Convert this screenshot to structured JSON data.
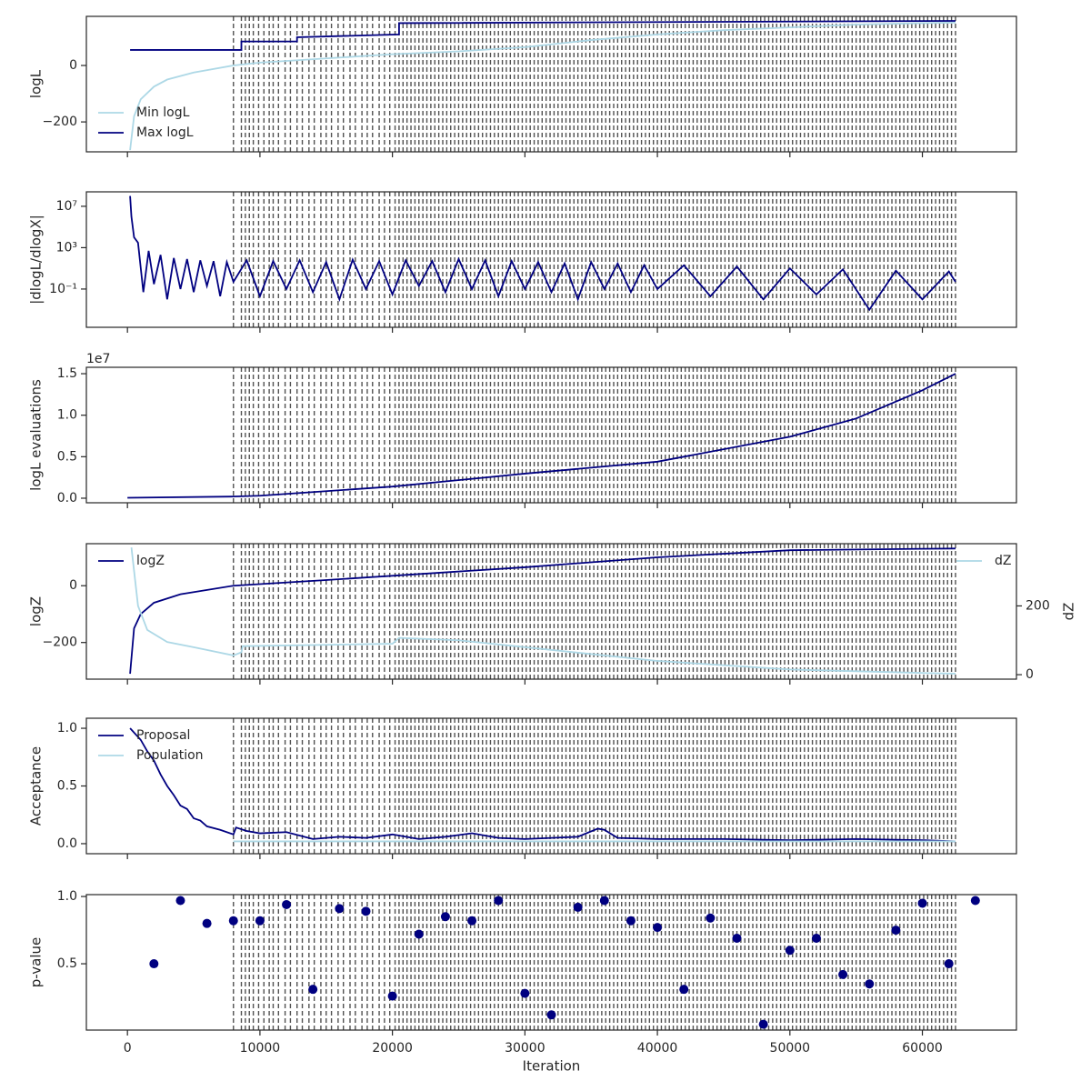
{
  "vlines": [
    8000,
    8600,
    8900,
    9200,
    9500,
    9900,
    10300,
    10700,
    11000,
    11400,
    11900,
    12300,
    12800,
    13200,
    13700,
    14100,
    14600,
    15000,
    15400,
    15900,
    16300,
    16800,
    17200,
    17700,
    18100,
    18500,
    19000,
    19400,
    19800,
    20200,
    20500,
    20800,
    21100,
    21400,
    21700,
    22000,
    22300,
    22600,
    22900,
    23200,
    23500,
    23800,
    24100,
    24400,
    24700,
    25000,
    25300,
    25600,
    25900,
    26200,
    26500,
    26800,
    27100,
    27400,
    27700,
    28000,
    28300,
    28600,
    28900,
    29200,
    29500,
    29800,
    30100,
    30400,
    30700,
    31000,
    31300,
    31600,
    31900,
    32200,
    32500,
    32800,
    33100,
    33400,
    33700,
    34000,
    34300,
    34600,
    34900,
    35200,
    35500,
    35800,
    36100,
    36400,
    36700,
    37000,
    37300,
    37600,
    37900,
    38200,
    38500,
    38800,
    39100,
    39400,
    39700,
    40000,
    40300,
    40600,
    40900,
    41200,
    41500,
    41800,
    42100,
    42400,
    42700,
    43000,
    43300,
    43600,
    43900,
    44200,
    44500,
    44800,
    45100,
    45400,
    45700,
    46000,
    46300,
    46600,
    46900,
    47200,
    47500,
    47800,
    48100,
    48400,
    48700,
    49000,
    49300,
    49600,
    49900,
    50200,
    50500,
    50800,
    51100,
    51400,
    51700,
    52000,
    52300,
    52600,
    52900,
    53200,
    53500,
    53800,
    54100,
    54400,
    54700,
    55000,
    55300,
    55600,
    55900,
    56200,
    56500,
    56800,
    57100,
    57400,
    57700,
    58000,
    58300,
    58600,
    58900,
    59200,
    59500,
    59800,
    60100,
    60400,
    60700,
    61000,
    61300,
    61600,
    61900,
    62200,
    62500
  ],
  "chart_data": [
    {
      "type": "line",
      "ylabel": "logL",
      "xlim": [
        -3100,
        67100
      ],
      "xticks": [
        0,
        10000,
        20000,
        30000,
        40000,
        50000,
        60000
      ],
      "ylim": [
        -306,
        174
      ],
      "yticks": [
        {
          "value": -200,
          "label": "−200"
        },
        0
      ],
      "legend": "lower left",
      "series": [
        {
          "name": "Min logL",
          "color": "#add8e6",
          "x": [
            200,
            500,
            1000,
            2000,
            3000,
            5000,
            8000,
            10000,
            15000,
            20000,
            25000,
            30000,
            35000,
            40000,
            45000,
            50000,
            55000,
            60000,
            62500
          ],
          "values": [
            -300,
            -180,
            -120,
            -75,
            -50,
            -25,
            0,
            10,
            25,
            40,
            50,
            65,
            90,
            110,
            125,
            135,
            145,
            150,
            152
          ]
        },
        {
          "name": "Max logL",
          "color": "#000080",
          "x": [
            200,
            8600,
            8600,
            12800,
            12800,
            20500,
            20500,
            62500
          ],
          "values": [
            55,
            55,
            85,
            85,
            100,
            110,
            150,
            158
          ]
        }
      ]
    },
    {
      "type": "line",
      "ylabel": "|dlogL/dlogX|",
      "xlim": [
        -3100,
        67100
      ],
      "xticks": [
        0,
        10000,
        20000,
        30000,
        40000,
        50000,
        60000
      ],
      "ylim": [
        2e-05,
        250000000
      ],
      "log_scale": true,
      "yticks": [
        {
          "value": 0.1,
          "label": "10⁻¹"
        },
        {
          "value": 1000,
          "label": "10³"
        },
        {
          "value": 10000000,
          "label": "10⁷"
        }
      ],
      "series": [
        {
          "color": "#000080",
          "x": [
            200,
            300,
            500,
            800,
            1200,
            1600,
            2000,
            2500,
            3000,
            3500,
            4000,
            4500,
            5000,
            5500,
            6000,
            6500,
            7000,
            7500,
            8000,
            9000,
            10000,
            11000,
            12000,
            13000,
            14000,
            15000,
            16000,
            17000,
            18000,
            19000,
            20000,
            21000,
            22000,
            23000,
            24000,
            25000,
            26000,
            27000,
            28000,
            29000,
            30000,
            31000,
            32000,
            33000,
            34000,
            35000,
            36000,
            37000,
            38000,
            39000,
            40000,
            42000,
            44000,
            46000,
            48000,
            50000,
            52000,
            54000,
            56000,
            58000,
            60000,
            62000,
            62500
          ],
          "values": [
            100000000,
            1000000,
            10000,
            3000,
            0.05,
            500,
            0.3,
            200,
            0.01,
            100,
            0.1,
            80,
            0.05,
            60,
            0.2,
            50,
            0.02,
            40,
            0.5,
            60,
            0.02,
            50,
            0.1,
            60,
            0.05,
            40,
            0.01,
            70,
            0.1,
            50,
            0.03,
            60,
            0.2,
            50,
            0.05,
            80,
            0.1,
            60,
            0.02,
            50,
            0.1,
            40,
            0.05,
            30,
            0.01,
            40,
            0.1,
            30,
            0.05,
            20,
            0.1,
            20,
            0.02,
            15,
            0.01,
            10,
            0.03,
            8,
            0.001,
            6,
            0.01,
            5,
            0.5
          ]
        }
      ]
    },
    {
      "type": "line",
      "ylabel": "logL evaluations",
      "offset_text": "1e7",
      "xlim": [
        -3100,
        67100
      ],
      "xticks": [
        0,
        10000,
        20000,
        30000,
        40000,
        50000,
        60000
      ],
      "ylim": [
        -550000,
        15770000
      ],
      "yticks": [
        {
          "value": 0,
          "label": "0.0"
        },
        {
          "value": 5000000,
          "label": "0.5"
        },
        {
          "value": 10000000,
          "label": "1.0"
        },
        {
          "value": 15000000,
          "label": "1.5"
        }
      ],
      "series": [
        {
          "color": "#000080",
          "x": [
            0,
            8000,
            10000,
            20000,
            30000,
            40000,
            50000,
            55000,
            60000,
            62500
          ],
          "values": [
            50000,
            200000,
            300000,
            1400000,
            2960000,
            4400000,
            7400000,
            9600000,
            13000000,
            15000000
          ]
        }
      ]
    },
    {
      "type": "line",
      "ylabel": "logZ",
      "y2label": "dZ",
      "xlim": [
        -3100,
        67100
      ],
      "xticks": [
        0,
        10000,
        20000,
        30000,
        40000,
        50000,
        60000
      ],
      "ylim": [
        -329,
        148
      ],
      "yticks": [
        {
          "value": -200,
          "label": "−200"
        },
        0
      ],
      "y2lim": [
        -13,
        381
      ],
      "y2ticks": [
        0,
        200
      ],
      "legend": "upper left",
      "y2legend": "upper right",
      "series": [
        {
          "name": "logZ",
          "color": "#000080",
          "x": [
            200,
            500,
            1000,
            2000,
            4000,
            8000,
            15000,
            20000,
            30000,
            40000,
            50000,
            60000,
            62500
          ],
          "values": [
            -310,
            -150,
            -100,
            -60,
            -30,
            0,
            20,
            35,
            65,
            100,
            125,
            130,
            131
          ]
        },
        {
          "name": "dZ",
          "color": "#add8e6",
          "axis": "y2",
          "x": [
            300,
            800,
            1500,
            3000,
            5000,
            8000,
            8600,
            8700,
            20000,
            20500,
            25000,
            30000,
            40000,
            50000,
            60000,
            62500
          ],
          "values": [
            370,
            200,
            130,
            95,
            80,
            56,
            65,
            83,
            90,
            107,
            100,
            80,
            40,
            15,
            5,
            3
          ]
        }
      ]
    },
    {
      "type": "line",
      "ylabel": "Acceptance",
      "xlim": [
        -3100,
        67100
      ],
      "xticks": [
        0,
        10000,
        20000,
        30000,
        40000,
        50000,
        60000
      ],
      "ylim": [
        -0.087,
        1.087
      ],
      "yticks": [
        {
          "value": 0,
          "label": "0.0"
        },
        0.5,
        {
          "value": 1,
          "label": "1.0"
        }
      ],
      "legend": "upper left",
      "series": [
        {
          "name": "Proposal",
          "color": "#000080",
          "x": [
            200,
            1000,
            1500,
            2000,
            2500,
            3000,
            3500,
            4000,
            4500,
            5000,
            5500,
            6000,
            7000,
            8000,
            8200,
            9000,
            10000,
            12000,
            14000,
            16000,
            18000,
            20000,
            22000,
            24000,
            26000,
            28000,
            30000,
            32000,
            34000,
            35500,
            36000,
            37000,
            40000,
            45000,
            50000,
            55000,
            60000,
            62500
          ],
          "values": [
            1.0,
            0.9,
            0.8,
            0.72,
            0.6,
            0.5,
            0.42,
            0.33,
            0.3,
            0.22,
            0.2,
            0.15,
            0.12,
            0.08,
            0.14,
            0.11,
            0.09,
            0.1,
            0.04,
            0.06,
            0.05,
            0.08,
            0.04,
            0.06,
            0.09,
            0.05,
            0.04,
            0.05,
            0.06,
            0.13,
            0.12,
            0.05,
            0.04,
            0.04,
            0.03,
            0.04,
            0.03,
            0.02
          ]
        },
        {
          "name": "Population",
          "color": "#add8e6",
          "x": [
            8000,
            62500
          ],
          "values": [
            0.02,
            0.02
          ]
        }
      ]
    },
    {
      "type": "scatter",
      "ylabel": "p-value",
      "xlabel": "Iteration",
      "xlim": [
        -3100,
        67100
      ],
      "xticks": [
        0,
        10000,
        20000,
        30000,
        40000,
        50000,
        60000
      ],
      "ylim": [
        0.007,
        1.014
      ],
      "yticks": [
        0.5,
        {
          "value": 1,
          "label": "1.0"
        }
      ],
      "series": [
        {
          "color": "#000080",
          "x": [
            2000,
            4000,
            6000,
            8000,
            10000,
            12000,
            14000,
            16000,
            18000,
            20000,
            22000,
            24000,
            26000,
            28000,
            30000,
            32000,
            34000,
            36000,
            38000,
            40000,
            42000,
            44000,
            46000,
            48000,
            50000,
            52000,
            54000,
            56000,
            58000,
            60000,
            62000,
            64000
          ],
          "values": [
            0.5,
            0.97,
            0.8,
            0.82,
            0.82,
            0.94,
            0.31,
            0.91,
            0.89,
            0.26,
            0.72,
            0.85,
            0.82,
            0.97,
            0.28,
            0.12,
            0.92,
            0.97,
            0.82,
            0.77,
            0.31,
            0.84,
            0.69,
            0.05,
            0.6,
            0.69,
            0.42,
            0.35,
            0.75,
            0.95,
            0.5,
            0.97
          ]
        }
      ]
    }
  ]
}
